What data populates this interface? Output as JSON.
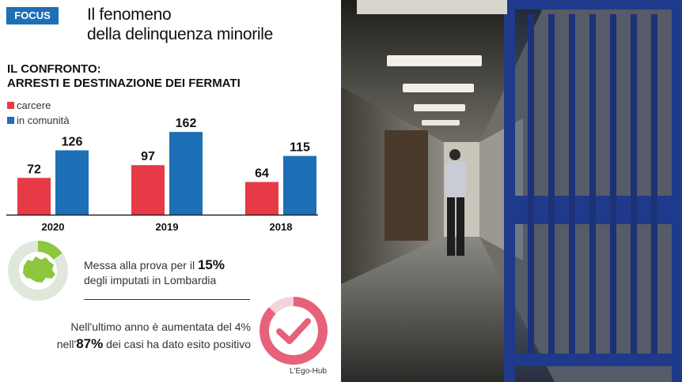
{
  "badge": "FOCUS",
  "title": [
    "Il fenomeno",
    "della delinquenza minorile"
  ],
  "subtitle": [
    "IL CONFRONTO:",
    "ARRESTI E DESTINAZIONE DEI FERMATI"
  ],
  "legend": [
    {
      "label": "carcere",
      "color": "#e63a46"
    },
    {
      "label": "in comunità",
      "color": "#1d6fb6"
    }
  ],
  "chart_data": {
    "type": "bar",
    "categories": [
      "2020",
      "2019",
      "2018"
    ],
    "series": [
      {
        "name": "carcere",
        "color": "#e63a46",
        "values": [
          72,
          97,
          64
        ]
      },
      {
        "name": "in comunità",
        "color": "#1d6fb6",
        "values": [
          126,
          162,
          115
        ]
      }
    ],
    "title": "IL CONFRONTO: ARRESTI E DESTINAZIONE DEI FERMATI",
    "xlabel": "",
    "ylabel": "",
    "ylim": [
      0,
      170
    ],
    "grid": false,
    "legend_position": "top-left"
  },
  "stat1": {
    "text_before": "Messa alla prova per il ",
    "value": "15%",
    "text_after": "degli imputati in Lombardia",
    "fraction": 0.15
  },
  "stat2": {
    "line1": "Nell'ultimo anno è aumentata del 4%",
    "prefix": "nell'",
    "value": "87%",
    "suffix": " dei casi ha dato esito positivo",
    "fraction": 0.87
  },
  "credit": "L'Ego-Hub",
  "colors": {
    "accent_blue": "#1d6fb6",
    "accent_red": "#e63a46",
    "green": "#8dc63f",
    "pink": "#e8617a"
  }
}
